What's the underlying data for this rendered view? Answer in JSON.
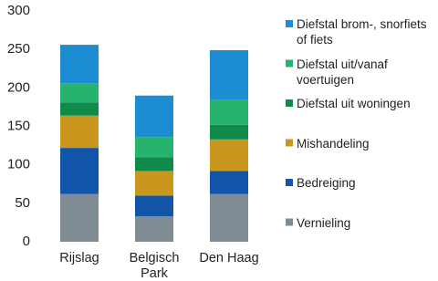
{
  "chart_data": {
    "type": "stacked_bar",
    "categories": [
      "Rijslag",
      "Belgisch Park",
      "Den Haag"
    ],
    "series": [
      {
        "name": "Vernieling",
        "color": "#7f8c94",
        "values": [
          62,
          33,
          62
        ]
      },
      {
        "name": "Bedreiging",
        "color": "#1155a8",
        "values": [
          60,
          27,
          30
        ]
      },
      {
        "name": "Mishandeling",
        "color": "#c9961e",
        "values": [
          42,
          32,
          41
        ]
      },
      {
        "name": "Diefstal uit woningen",
        "color": "#0e8a4a",
        "values": [
          17,
          18,
          19
        ]
      },
      {
        "name": "Diefstal uit/vanaf voertuigen",
        "color": "#26b36e",
        "values": [
          25,
          26,
          32
        ]
      },
      {
        "name": "Diefstal brom-, snorfiets of fiets",
        "color": "#1c8dd3",
        "values": [
          50,
          54,
          65
        ]
      }
    ],
    "ylim": [
      0,
      300
    ],
    "yticks": [
      0,
      50,
      100,
      150,
      200,
      250,
      300
    ],
    "grid": false,
    "legend": "right"
  }
}
